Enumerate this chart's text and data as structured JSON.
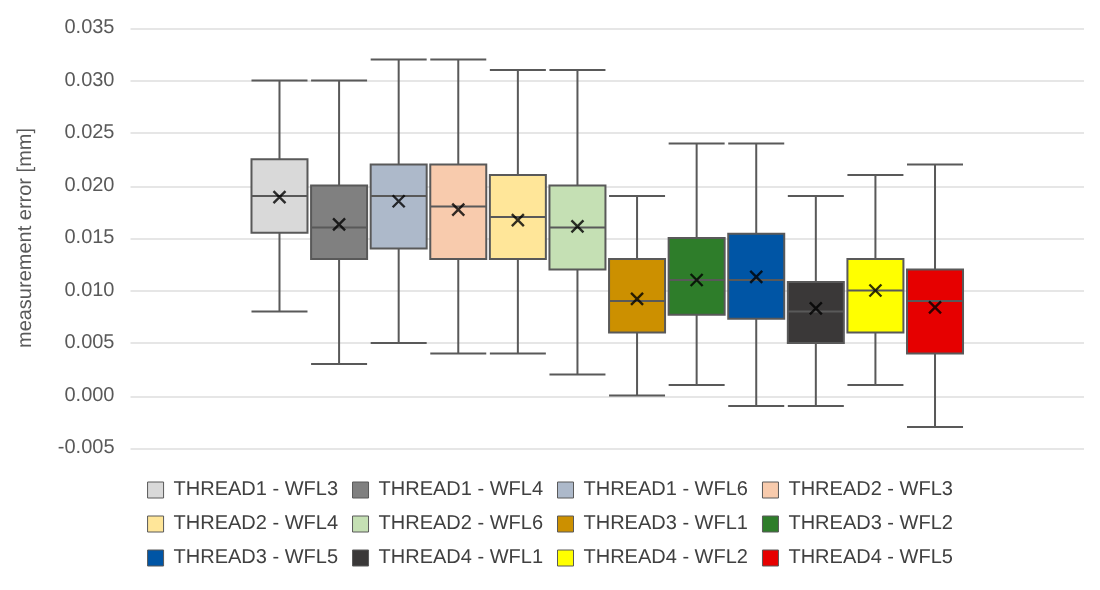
{
  "chart_data": {
    "type": "box",
    "ylabel": "measurement error [mm]",
    "categories": [
      null
    ],
    "ylim": [
      -0.005,
      0.035
    ],
    "yticks": [
      {
        "value": -0.005,
        "label": "-0.005"
      },
      {
        "value": 0,
        "label": "0.000"
      },
      {
        "value": 0.005,
        "label": "0.005"
      },
      {
        "value": 0.01,
        "label": "0.010"
      },
      {
        "value": 0.015,
        "label": "0.015"
      },
      {
        "value": 0.02,
        "label": "0.020"
      },
      {
        "value": 0.025,
        "label": "0.025"
      },
      {
        "value": 0.03,
        "label": "0.030"
      },
      {
        "value": 0.035,
        "label": "0.035"
      }
    ],
    "grid": "y",
    "legend": "bottom",
    "tick_labels": "y",
    "marker": "cross",
    "series": [
      {
        "name": "THREAD1 - WFL3",
        "color": "#d9d9d9",
        "boxes": [
          {
            "low": 0.008,
            "q1": 0.0155,
            "median": 0.019,
            "q3": 0.0225,
            "high": 0.03,
            "mean": 0.0189
          }
        ]
      },
      {
        "name": "THREAD1 - WFL4",
        "color": "#808080",
        "boxes": [
          {
            "low": 0.003,
            "q1": 0.013,
            "median": 0.016,
            "q3": 0.02,
            "high": 0.03,
            "mean": 0.0163
          }
        ]
      },
      {
        "name": "THREAD1 - WFL6",
        "color": "#adb9ca",
        "boxes": [
          {
            "low": 0.005,
            "q1": 0.014,
            "median": 0.019,
            "q3": 0.022,
            "high": 0.032,
            "mean": 0.0185
          }
        ]
      },
      {
        "name": "THREAD2 - WFL3",
        "color": "#f8cbad",
        "boxes": [
          {
            "low": 0.004,
            "q1": 0.013,
            "median": 0.018,
            "q3": 0.022,
            "high": 0.032,
            "mean": 0.0177
          }
        ]
      },
      {
        "name": "THREAD2 - WFL4",
        "color": "#ffe699",
        "boxes": [
          {
            "low": 0.004,
            "q1": 0.013,
            "median": 0.017,
            "q3": 0.021,
            "high": 0.031,
            "mean": 0.0167
          }
        ]
      },
      {
        "name": "THREAD2 - WFL6",
        "color": "#c5e0b4",
        "boxes": [
          {
            "low": 0.002,
            "q1": 0.012,
            "median": 0.016,
            "q3": 0.02,
            "high": 0.031,
            "mean": 0.0161
          }
        ]
      },
      {
        "name": "THREAD3 - WFL1",
        "color": "#cc9000",
        "boxes": [
          {
            "low": 0,
            "q1": 0.006,
            "median": 0.009,
            "q3": 0.013,
            "high": 0.019,
            "mean": 0.0092
          }
        ]
      },
      {
        "name": "THREAD3 - WFL2",
        "color": "#2e7d2a",
        "boxes": [
          {
            "low": 0.001,
            "q1": 0.0077,
            "median": 0.011,
            "q3": 0.015,
            "high": 0.024,
            "mean": 0.011
          }
        ]
      },
      {
        "name": "THREAD3 - WFL5",
        "color": "#0055a5",
        "boxes": [
          {
            "low": -0.001,
            "q1": 0.0073,
            "median": 0.011,
            "q3": 0.0154,
            "high": 0.024,
            "mean": 0.0113
          }
        ]
      },
      {
        "name": "THREAD4 - WFL1",
        "color": "#3a3838",
        "boxes": [
          {
            "low": -0.001,
            "q1": 0.005,
            "median": 0.008,
            "q3": 0.0108,
            "high": 0.019,
            "mean": 0.0083
          }
        ]
      },
      {
        "name": "THREAD4 - WFL2",
        "color": "#ffff00",
        "boxes": [
          {
            "low": 0.001,
            "q1": 0.006,
            "median": 0.01,
            "q3": 0.013,
            "high": 0.021,
            "mean": 0.01
          }
        ]
      },
      {
        "name": "THREAD4 - WFL5",
        "color": "#e60000",
        "boxes": [
          {
            "low": -0.003,
            "q1": 0.004,
            "median": 0.009,
            "q3": 0.012,
            "high": 0.022,
            "mean": 0.0084
          }
        ]
      }
    ]
  }
}
